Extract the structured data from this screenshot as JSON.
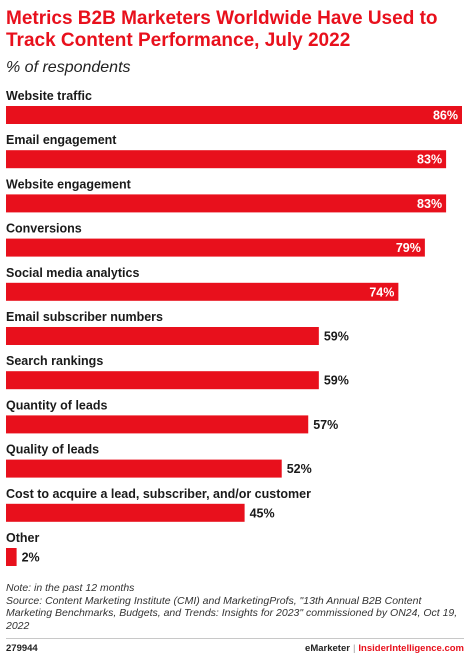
{
  "header": {
    "title": "Metrics B2B Marketers Worldwide Have Used to Track Content Performance, July 2022",
    "subtitle": "% of respondents"
  },
  "chart_data": {
    "type": "bar",
    "orientation": "horizontal",
    "categories": [
      "Website traffic",
      "Email engagement",
      "Website engagement",
      "Conversions",
      "Social media analytics",
      "Email subscriber numbers",
      "Search rankings",
      "Quantity of leads",
      "Quality of leads",
      "Cost to acquire a lead, subscriber, and/or customer",
      "Other"
    ],
    "values": [
      86,
      83,
      83,
      79,
      74,
      59,
      59,
      57,
      52,
      45,
      2
    ],
    "value_labels": [
      "86%",
      "83%",
      "83%",
      "79%",
      "74%",
      "59%",
      "59%",
      "57%",
      "52%",
      "45%",
      "2%"
    ],
    "unit": "%",
    "xlim": [
      0,
      86
    ],
    "bar_color": "#e8101c",
    "grid": false,
    "legend": "none"
  },
  "footer": {
    "note": "Note: in the past 12 months",
    "source": "Source: Content Marketing Institute (CMI) and MarketingProfs, \"13th Annual B2B Content Marketing Benchmarks, Budgets, and Trends: Insights for 2023\" commissioned by ON24, Oct 19, 2022",
    "chart_id": "279944",
    "brand_emarketer": "eMarketer",
    "brand_separator": "|",
    "brand_insider": "InsiderIntelligence.com"
  }
}
